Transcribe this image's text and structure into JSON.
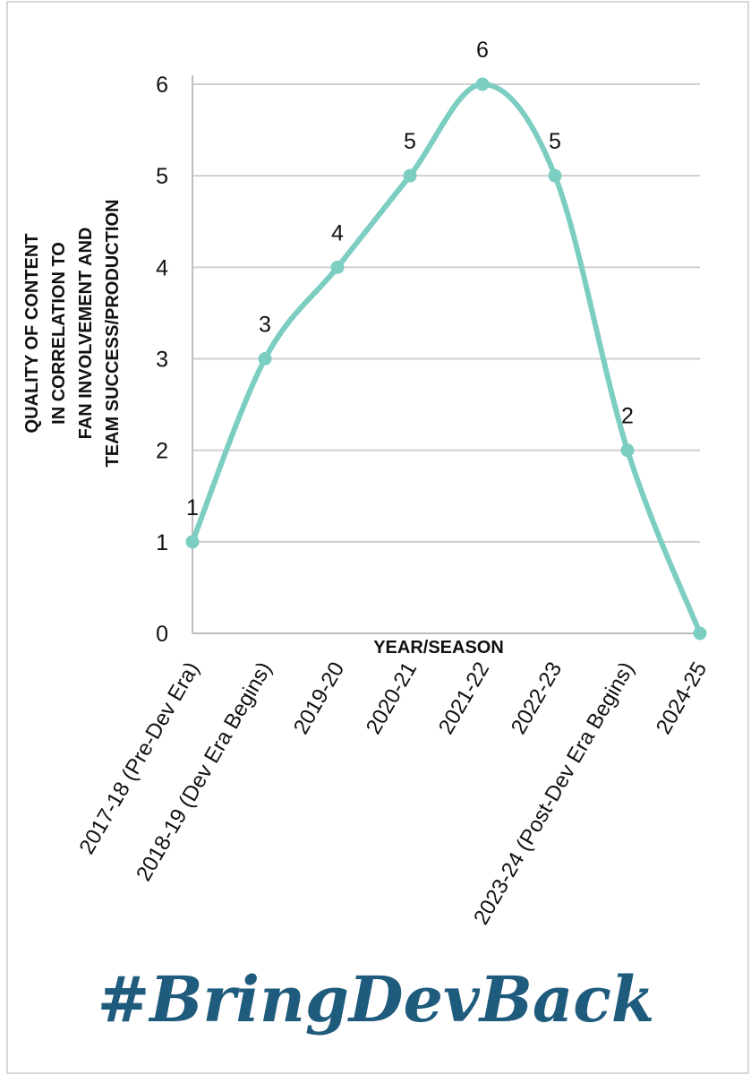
{
  "chart_data": {
    "type": "line",
    "smooth": true,
    "title": "",
    "xlabel": "YEAR/SEASON",
    "ylabel_lines": [
      "QUALITY OF CONTENT",
      "IN CORRELATION TO",
      "FAN INVOLVEMENT AND",
      "TEAM SUCCESS/PRODUCTION"
    ],
    "categories": [
      "2017-18 (Pre-Dev Era)",
      "2018-19 (Dev Era Begins)",
      "2019-20",
      "2020-21",
      "2021-22",
      "2022-23",
      "2023-24 (Post-Dev Era Begins)",
      "2024-25"
    ],
    "series": [
      {
        "values": [
          1,
          3,
          4,
          5,
          6,
          5,
          2,
          0
        ],
        "data_labels": [
          "1",
          "3",
          "4",
          "5",
          "6",
          "5",
          "2",
          ""
        ],
        "color": "#7ccdc2"
      }
    ],
    "ylim": [
      0,
      6
    ],
    "yticks": [
      0,
      1,
      2,
      3,
      4,
      5,
      6
    ],
    "grid": true,
    "legend": "none"
  },
  "watermark": {
    "text": "#BringDevBack",
    "color": "#1f5b7d"
  }
}
